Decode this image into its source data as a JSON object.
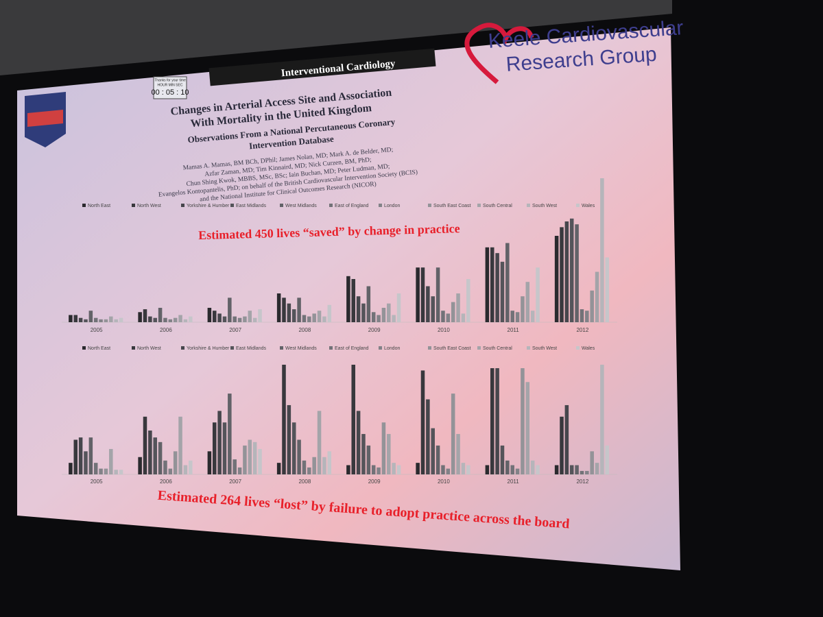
{
  "slide": {
    "header": "Interventional Cardiology",
    "logo_text": [
      "Keele Cardiovascular",
      "Research Group"
    ],
    "timer": {
      "caption": "Thanks for your time",
      "units": "HOUR  MIN  SEC",
      "time": "00 : 05 : 10"
    },
    "title": [
      "Changes in Arterial Access Site and Association",
      "With Mortality in the United Kingdom"
    ],
    "subtitle": [
      "Observations From a National Percutaneous Coronary",
      "Intervention Database"
    ],
    "authors": [
      "Mamas A. Mamas, BM BCh, DPhil; James Nolan, MD; Mark A. de Belder, MD;",
      "Azfar Zaman, MD; Tim Kinnaird, MD; Nick Curzen, BM, PhD;",
      "Chun Shing Kwok, MBBS, MSc, BSc; Iain Buchan, MD; Peter Ludman, MD;",
      "Evangelos Kontopantelis, PhD; on behalf of the British Cardiovascular Intervention Society (BCIS)",
      "and the National Institute for Clinical Outcomes Research (NICOR)"
    ]
  },
  "chart_data": [
    {
      "type": "bar",
      "annotation": "Estimated 450 lives “saved” by change in practice",
      "categories": [
        "2005",
        "2006",
        "2007",
        "2008",
        "2009",
        "2010",
        "2011",
        "2012"
      ],
      "series": [
        {
          "name": "North East",
          "color": "#2a2a2e",
          "values": [
            5,
            7,
            10,
            20,
            32,
            38,
            52,
            60
          ]
        },
        {
          "name": "North West",
          "color": "#38383d",
          "values": [
            5,
            9,
            8,
            17,
            30,
            38,
            52,
            66
          ]
        },
        {
          "name": "Yorkshire & Humber",
          "color": "#46464c",
          "values": [
            3,
            4,
            6,
            13,
            18,
            25,
            48,
            70
          ]
        },
        {
          "name": "East Midlands",
          "color": "#54545a",
          "values": [
            2,
            3,
            4,
            9,
            13,
            18,
            42,
            72
          ]
        },
        {
          "name": "West Midlands",
          "color": "#626268",
          "values": [
            8,
            10,
            17,
            17,
            25,
            38,
            55,
            68
          ]
        },
        {
          "name": "East of England",
          "color": "#727278",
          "values": [
            3,
            3,
            4,
            5,
            7,
            8,
            8,
            9
          ]
        },
        {
          "name": "London",
          "color": "#828288",
          "values": [
            2,
            2,
            3,
            4,
            5,
            6,
            7,
            8
          ]
        },
        {
          "name": "South East Coast",
          "color": "#939398",
          "values": [
            2,
            3,
            4,
            6,
            10,
            14,
            18,
            22
          ]
        },
        {
          "name": "South Central",
          "color": "#a4a4a9",
          "values": [
            4,
            5,
            8,
            8,
            13,
            20,
            28,
            35
          ]
        },
        {
          "name": "South West",
          "color": "#b5b5ba",
          "values": [
            2,
            2,
            3,
            4,
            5,
            6,
            8,
            100
          ]
        },
        {
          "name": "Wales",
          "color": "#c6c6ca",
          "values": [
            3,
            4,
            9,
            12,
            20,
            30,
            38,
            45
          ]
        }
      ]
    },
    {
      "type": "bar",
      "annotation": "Estimated 264 lives “lost” by failure to adopt practice across the board",
      "categories": [
        "2005",
        "2006",
        "2007",
        "2008",
        "2009",
        "2010",
        "2011",
        "2012"
      ],
      "series": [
        {
          "name": "North East",
          "color": "#2a2a2e",
          "values": [
            10,
            15,
            20,
            10,
            8,
            10,
            8,
            8
          ]
        },
        {
          "name": "North West",
          "color": "#38383d",
          "values": [
            30,
            50,
            45,
            95,
            95,
            90,
            92,
            50
          ]
        },
        {
          "name": "Yorkshire & Humber",
          "color": "#46464c",
          "values": [
            32,
            38,
            55,
            60,
            55,
            65,
            92,
            60
          ]
        },
        {
          "name": "East Midlands",
          "color": "#54545a",
          "values": [
            20,
            32,
            45,
            45,
            35,
            40,
            25,
            8
          ]
        },
        {
          "name": "West Midlands",
          "color": "#626268",
          "values": [
            32,
            28,
            70,
            30,
            25,
            25,
            12,
            8
          ]
        },
        {
          "name": "East of England",
          "color": "#727278",
          "values": [
            10,
            12,
            13,
            12,
            8,
            8,
            8,
            3
          ]
        },
        {
          "name": "London",
          "color": "#828288",
          "values": [
            5,
            5,
            6,
            6,
            6,
            5,
            5,
            3
          ]
        },
        {
          "name": "South East Coast",
          "color": "#939398",
          "values": [
            5,
            20,
            25,
            15,
            45,
            70,
            92,
            20
          ]
        },
        {
          "name": "South Central",
          "color": "#a4a4a9",
          "values": [
            22,
            50,
            30,
            55,
            35,
            35,
            80,
            10
          ]
        },
        {
          "name": "South West",
          "color": "#b5b5ba",
          "values": [
            4,
            8,
            28,
            15,
            10,
            10,
            12,
            95
          ]
        },
        {
          "name": "Wales",
          "color": "#c6c6ca",
          "values": [
            4,
            12,
            22,
            20,
            8,
            8,
            8,
            25
          ]
        }
      ]
    }
  ]
}
